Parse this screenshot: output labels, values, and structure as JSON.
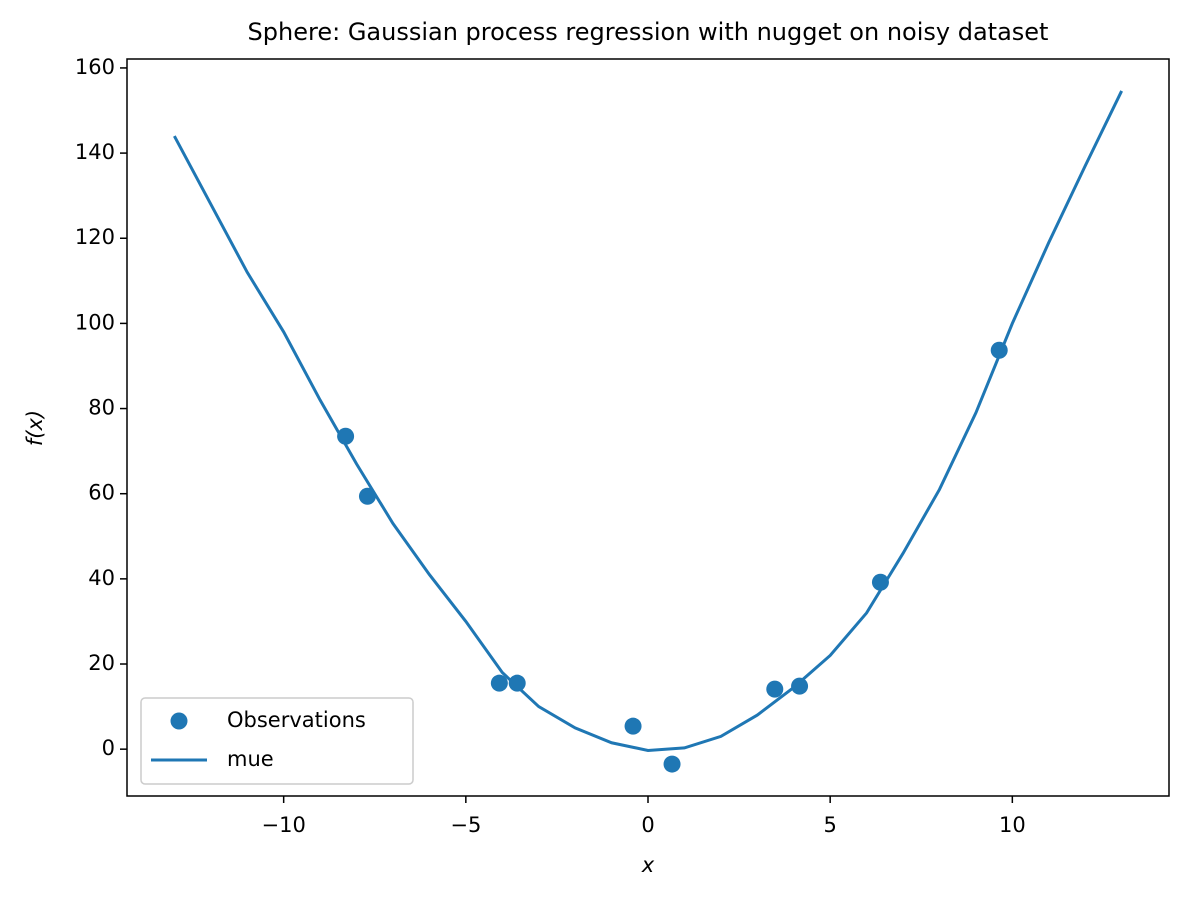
{
  "chart_data": {
    "type": "scatter-line",
    "title": "Sphere: Gaussian process regression with nugget on noisy dataset",
    "xlabel": "x",
    "ylabel": "f(x)",
    "xlim": [
      -14.3,
      14.3
    ],
    "ylim": [
      -11,
      162.1
    ],
    "xticks": [
      {
        "value": -10,
        "label": "−10"
      },
      {
        "value": -5,
        "label": "−5"
      },
      0,
      5,
      10
    ],
    "yticks": [
      0,
      20,
      40,
      60,
      80,
      100,
      120,
      140,
      160
    ],
    "legend": "lower left",
    "scatter": {
      "name": "Observations",
      "color": "#1f77b4",
      "x": [
        -8.3,
        -7.7,
        -4.08,
        -3.59,
        -0.41,
        0.66,
        3.48,
        4.16,
        6.38,
        9.64
      ],
      "values": [
        73.5,
        59.4,
        15.5,
        15.5,
        5.4,
        -3.5,
        14.1,
        14.8,
        39.2,
        93.7
      ]
    },
    "line": {
      "name": "mue",
      "color": "#1f77b4",
      "x": [
        -13,
        -12,
        -11,
        -10,
        -9,
        -8,
        -7,
        -6,
        -5,
        -4,
        -3,
        -2,
        -1,
        0,
        1,
        2,
        3,
        4,
        5,
        6,
        7,
        8,
        9,
        10,
        11,
        12,
        13
      ],
      "values": [
        144,
        128,
        112,
        98,
        82,
        67,
        53,
        41,
        30,
        18,
        10,
        5,
        1.5,
        -0.3,
        0.3,
        3,
        8,
        14.5,
        22,
        32,
        46,
        61,
        79,
        100,
        119,
        137,
        154.6
      ]
    }
  }
}
